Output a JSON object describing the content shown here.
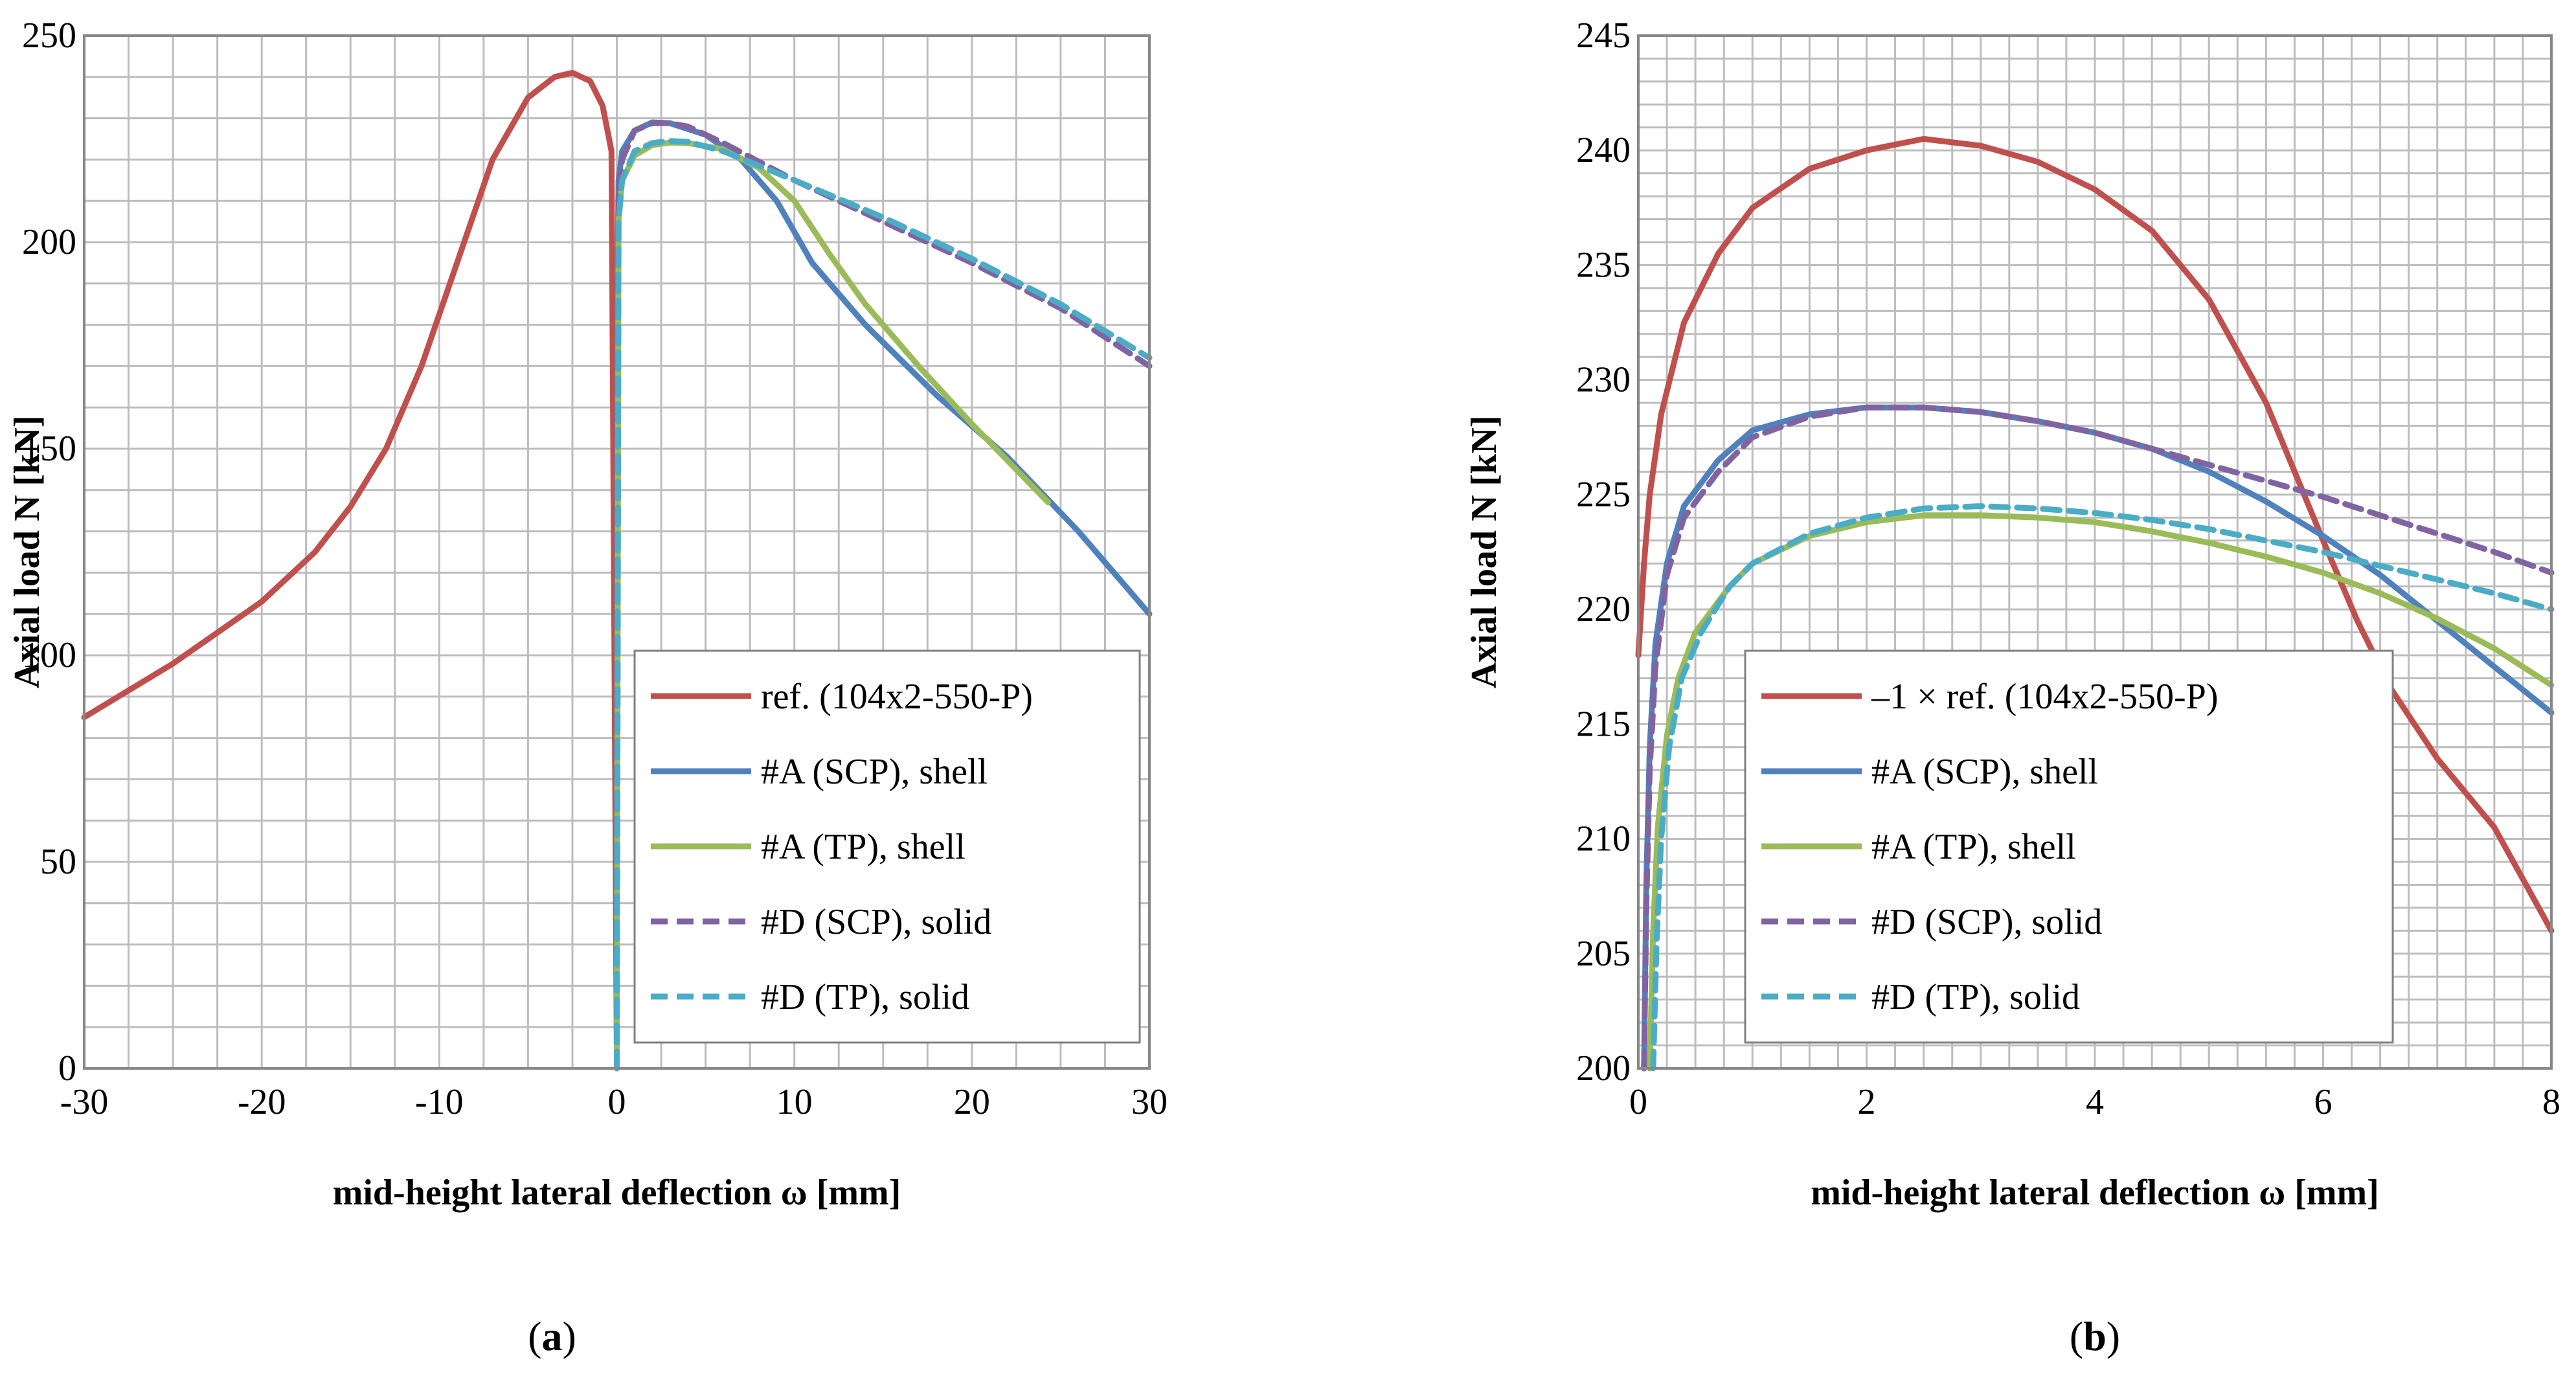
{
  "chart_data": [
    {
      "type": "line",
      "panel_label": "(a)",
      "panel_letter": "a",
      "xlabel": "mid-height lateral deflection ω [mm]",
      "ylabel": "Axial load N [kN]",
      "xlim": [
        -30,
        30
      ],
      "ylim": [
        0,
        250
      ],
      "x_major_ticks": [
        -30,
        -20,
        -10,
        0,
        10,
        20,
        30
      ],
      "y_major_ticks": [
        0,
        50,
        100,
        150,
        200,
        250
      ],
      "grid": true,
      "legend_position": "bottom-right",
      "series": [
        {
          "name": "ref. (104x2-550-P)",
          "color": "#C0504D",
          "dash": "solid",
          "x": [
            -30,
            -25,
            -20,
            -17,
            -15,
            -13,
            -11,
            -9,
            -7,
            -5,
            -3.5,
            -2.5,
            -1.5,
            -0.8,
            -0.3,
            0
          ],
          "y": [
            85,
            98,
            113,
            125,
            136,
            150,
            170,
            195,
            220,
            235,
            240,
            241,
            239,
            233,
            222,
            2
          ]
        },
        {
          "name": "#A (SCP), shell",
          "color": "#4F81BD",
          "dash": "solid",
          "x": [
            0,
            0.05,
            0.1,
            0.3,
            1,
            2,
            3,
            5,
            7,
            9,
            11,
            14,
            18,
            22,
            26,
            30
          ],
          "y": [
            0,
            195,
            215,
            222,
            227,
            229,
            228.8,
            226,
            220,
            210,
            195,
            180,
            163,
            148,
            130,
            110
          ]
        },
        {
          "name": "#A (TP), shell",
          "color": "#9BBB59",
          "dash": "solid",
          "x": [
            0,
            0.1,
            0.3,
            1,
            2,
            3,
            4,
            6,
            8,
            10,
            12,
            14,
            17,
            20,
            24.3
          ],
          "y": [
            0,
            205,
            215,
            221,
            223.5,
            224.1,
            224,
            222.5,
            218,
            210,
            197,
            185,
            170,
            156,
            137
          ]
        },
        {
          "name": "#D (SCP), solid",
          "color": "#8064A2",
          "dash": "dashed",
          "x": [
            0,
            0.1,
            0.3,
            1,
            2,
            3,
            4,
            6,
            10,
            15,
            20,
            25,
            30
          ],
          "y": [
            0,
            210,
            220,
            227,
            228.8,
            228.8,
            228,
            224,
            215,
            205,
            195,
            184,
            170
          ]
        },
        {
          "name": "#D (TP), solid",
          "color": "#4BACC6",
          "dash": "dashed",
          "x": [
            0,
            0.1,
            0.3,
            1,
            2,
            3,
            4,
            6,
            10,
            15,
            20,
            25,
            30
          ],
          "y": [
            0,
            205,
            215,
            222,
            224,
            224.5,
            224.3,
            222,
            215,
            206,
            196,
            185,
            172
          ]
        }
      ]
    },
    {
      "type": "line",
      "panel_label": "(b)",
      "panel_letter": "b",
      "xlabel": "mid-height lateral deflection ω [mm]",
      "ylabel": "Axial load N [kN]",
      "xlim": [
        0,
        8
      ],
      "ylim": [
        200,
        245
      ],
      "x_major_ticks": [
        0,
        2,
        4,
        6,
        8
      ],
      "y_major_ticks": [
        200,
        205,
        210,
        215,
        220,
        225,
        230,
        235,
        240,
        245
      ],
      "grid": true,
      "legend_position": "bottom-left",
      "series": [
        {
          "name": "–1 × ref. (104x2-550-P)",
          "color": "#C0504D",
          "dash": "solid",
          "x": [
            0,
            0.05,
            0.1,
            0.2,
            0.4,
            0.7,
            1,
            1.5,
            2,
            2.5,
            3,
            3.5,
            4,
            4.5,
            5,
            5.5,
            6,
            6.3,
            6.6,
            7,
            7.5,
            8
          ],
          "y": [
            218,
            222,
            225,
            228.5,
            232.5,
            235.5,
            237.5,
            239.2,
            240,
            240.5,
            240.2,
            239.5,
            238.3,
            236.5,
            233.5,
            229,
            223,
            219.5,
            216.5,
            213.5,
            210.5,
            206
          ]
        },
        {
          "name": "#A (SCP), shell",
          "color": "#4F81BD",
          "dash": "solid",
          "x": [
            0.05,
            0.07,
            0.1,
            0.15,
            0.25,
            0.4,
            0.7,
            1,
            1.5,
            2,
            2.5,
            3,
            3.5,
            4,
            4.5,
            5,
            5.5,
            6,
            6.5,
            7,
            7.5,
            8
          ],
          "y": [
            200,
            208,
            214,
            218.5,
            222,
            224.5,
            226.5,
            227.8,
            228.5,
            228.8,
            228.8,
            228.6,
            228.2,
            227.7,
            227,
            226,
            224.7,
            223.2,
            221.5,
            219.5,
            217.5,
            215.5
          ]
        },
        {
          "name": "#A (TP), shell",
          "color": "#9BBB59",
          "dash": "solid",
          "x": [
            0.1,
            0.13,
            0.17,
            0.25,
            0.35,
            0.5,
            0.8,
            1,
            1.5,
            2,
            2.5,
            3,
            3.5,
            4,
            4.5,
            5,
            5.5,
            6,
            6.5,
            7,
            7.5,
            8
          ],
          "y": [
            200,
            206,
            210.5,
            214.5,
            217,
            219,
            221,
            222,
            223.2,
            223.8,
            224.1,
            224.1,
            224,
            223.8,
            223.4,
            222.9,
            222.3,
            221.6,
            220.7,
            219.6,
            218.3,
            216.7
          ]
        },
        {
          "name": "#D (SCP), solid",
          "color": "#8064A2",
          "dash": "dashed",
          "x": [
            0.05,
            0.07,
            0.1,
            0.15,
            0.25,
            0.4,
            0.7,
            1,
            1.5,
            2,
            2.5,
            3,
            3.5,
            4,
            4.5,
            5,
            5.5,
            6,
            6.5,
            7,
            7.5,
            8
          ],
          "y": [
            200,
            207,
            213,
            217.5,
            221.5,
            224,
            226,
            227.5,
            228.4,
            228.8,
            228.8,
            228.6,
            228.2,
            227.7,
            227,
            226.3,
            225.6,
            224.9,
            224.1,
            223.3,
            222.5,
            221.6
          ]
        },
        {
          "name": "#D (TP), solid",
          "color": "#4BACC6",
          "dash": "dashed",
          "x": [
            0.13,
            0.16,
            0.2,
            0.27,
            0.38,
            0.55,
            0.8,
            1,
            1.5,
            2,
            2.5,
            3,
            3.5,
            4,
            4.5,
            5,
            5.5,
            6,
            6.5,
            7,
            7.5,
            8
          ],
          "y": [
            200,
            205.5,
            210,
            214,
            217,
            219,
            221,
            222,
            223.3,
            224,
            224.4,
            224.5,
            224.4,
            224.2,
            223.9,
            223.5,
            223,
            222.5,
            221.9,
            221.3,
            220.7,
            220
          ]
        }
      ]
    }
  ]
}
